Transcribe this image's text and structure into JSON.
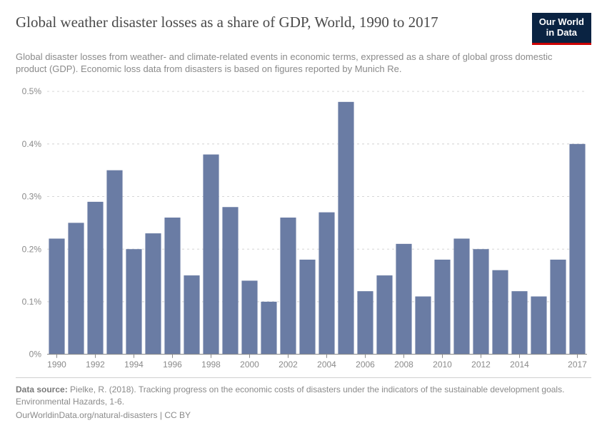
{
  "header": {
    "title": "Global weather disaster losses as a share of GDP, World, 1990 to 2017",
    "subtitle": "Global disaster losses from weather- and climate-related events in economic terms, expressed as a share of global gross domestic product (GDP). Economic loss data from disasters is based on figures reported by Munich Re.",
    "logo_line1": "Our World",
    "logo_line2": "in Data"
  },
  "chart": {
    "type": "bar",
    "years": [
      1990,
      1991,
      1992,
      1993,
      1994,
      1995,
      1996,
      1997,
      1998,
      1999,
      2000,
      2001,
      2002,
      2003,
      2004,
      2005,
      2006,
      2007,
      2008,
      2009,
      2010,
      2011,
      2012,
      2013,
      2014,
      2015,
      2016,
      2017
    ],
    "values": [
      0.22,
      0.25,
      0.29,
      0.35,
      0.2,
      0.23,
      0.26,
      0.15,
      0.38,
      0.28,
      0.14,
      0.1,
      0.26,
      0.18,
      0.27,
      0.48,
      0.12,
      0.15,
      0.21,
      0.11,
      0.18,
      0.22,
      0.2,
      0.16,
      0.12,
      0.11,
      0.18,
      0.4
    ],
    "bar_color": "#6a7ca4",
    "ylim": [
      0,
      0.5
    ],
    "yticks": [
      0,
      0.1,
      0.2,
      0.3,
      0.4,
      0.5
    ],
    "ytick_labels": [
      "0%",
      "0.1%",
      "0.2%",
      "0.3%",
      "0.4%",
      "0.5%"
    ],
    "xtick_years": [
      1990,
      1992,
      1994,
      1996,
      1998,
      2000,
      2002,
      2004,
      2006,
      2008,
      2010,
      2012,
      2014,
      2017
    ],
    "grid_color": "#d6d6d6",
    "axis_color": "#8a8a8a",
    "tick_font_size": 12,
    "background_color": "#ffffff",
    "bar_gap_ratio": 0.18
  },
  "footer": {
    "source_label": "Data source:",
    "source_text": "Pielke, R. (2018). Tracking progress on the economic costs of disasters under the indicators of the sustainable development goals. Environmental Hazards, 1-6.",
    "link_line": "OurWorldinData.org/natural-disasters | CC BY"
  }
}
